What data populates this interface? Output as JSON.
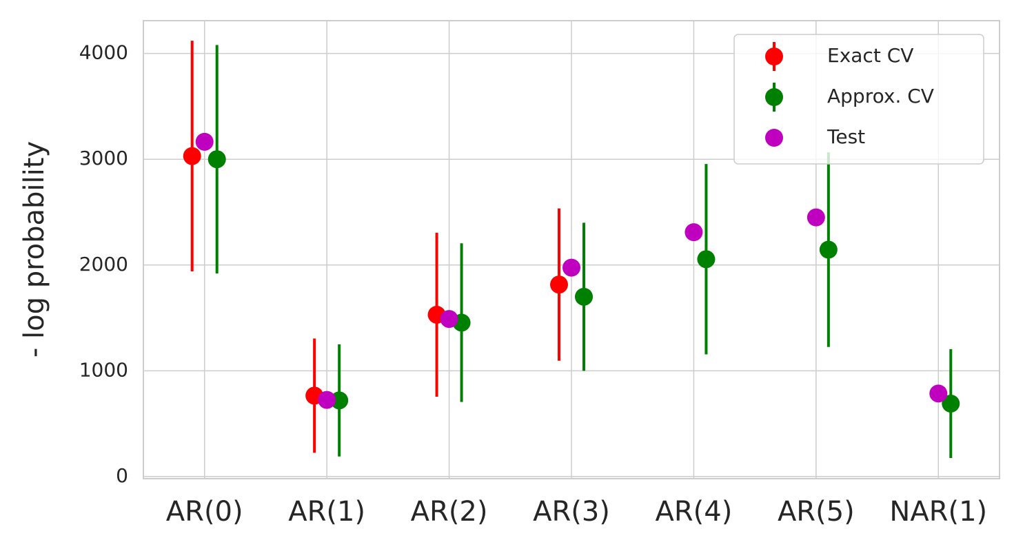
{
  "chart_data": {
    "type": "errorbar",
    "y_label": "- log probability",
    "categories": [
      "AR(0)",
      "AR(1)",
      "AR(2)",
      "AR(3)",
      "AR(4)",
      "AR(5)",
      "NAR(1)"
    ],
    "series": [
      {
        "name": "Exact CV",
        "color": "#ff0000",
        "values": [
          3030,
          765,
          1530,
          1815,
          null,
          null,
          null
        ],
        "errors": [
          1090,
          540,
          775,
          720,
          null,
          null,
          null
        ]
      },
      {
        "name": "Approx. CV",
        "color": "#008000",
        "values": [
          3000,
          720,
          1455,
          1700,
          2055,
          2145,
          690
        ],
        "errors": [
          1080,
          530,
          750,
          700,
          900,
          920,
          515
        ]
      },
      {
        "name": "Test",
        "color": "#bf00bf",
        "values": [
          3165,
          725,
          1490,
          1975,
          2310,
          2450,
          785
        ]
      }
    ],
    "ylim": [
      -20,
      4310
    ],
    "yticks": [
      0,
      1000,
      2000,
      3000,
      4000
    ],
    "grid": true,
    "legend": "upper right"
  }
}
